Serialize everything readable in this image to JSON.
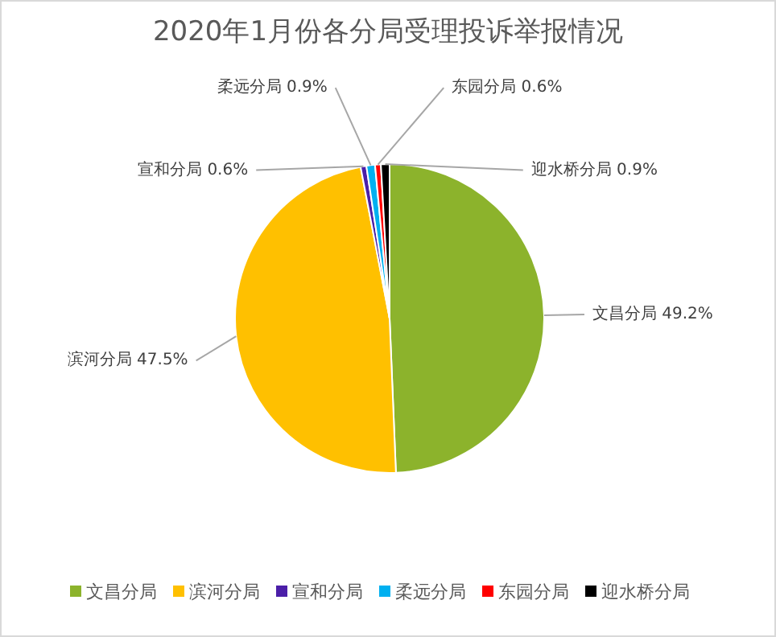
{
  "chart_data": {
    "type": "pie",
    "title": "2020年1月份各分局受理投诉举报情况",
    "categories": [
      "文昌分局",
      "滨河分局",
      "宣和分局",
      "柔远分局",
      "东园分局",
      "迎水桥分局"
    ],
    "values": [
      49.2,
      47.5,
      0.6,
      0.9,
      0.6,
      0.9
    ],
    "value_labels": [
      "49.2%",
      "47.5%",
      "0.6%",
      "0.9%",
      "0.6%",
      "0.9%"
    ],
    "colors": [
      "#8cb32c",
      "#ffc000",
      "#4b1fa8",
      "#00b0f0",
      "#ff0000",
      "#000000"
    ],
    "legend": "bottom"
  }
}
